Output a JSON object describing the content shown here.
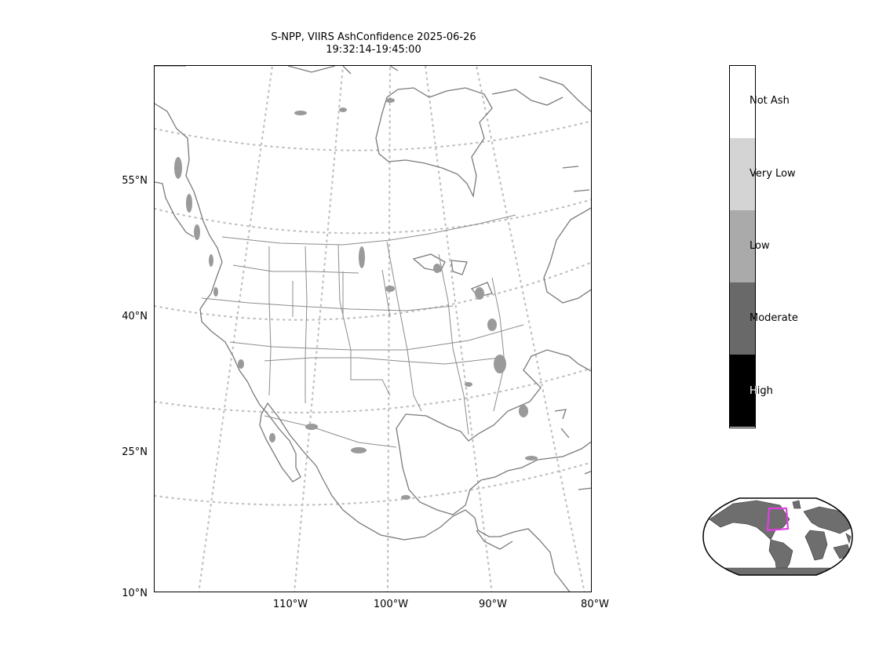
{
  "title": {
    "line1": "S-NPP, VIIRS AshConfidence 2025-06-26",
    "line2": "19:32:14-19:45:00"
  },
  "lat_labels": [
    "55°N",
    "40°N",
    "25°N",
    "10°N"
  ],
  "lon_labels": [
    "110°W",
    "100°W",
    "90°W",
    "80°W"
  ],
  "colorbar": {
    "categories": [
      {
        "label": "Not Ash",
        "color": "#ffffff"
      },
      {
        "label": "Very Low",
        "color": "#d4d4d4"
      },
      {
        "label": "Low",
        "color": "#aaaaaa"
      },
      {
        "label": "Moderate",
        "color": "#696969"
      },
      {
        "label": "High",
        "color": "#000000"
      }
    ]
  },
  "colors": {
    "coastline": "#808080",
    "graticule": "#c0c0c0",
    "ash_low": "#9a9a9a",
    "inset_land": "#6e6e6e",
    "inset_box": "#e040e0"
  }
}
